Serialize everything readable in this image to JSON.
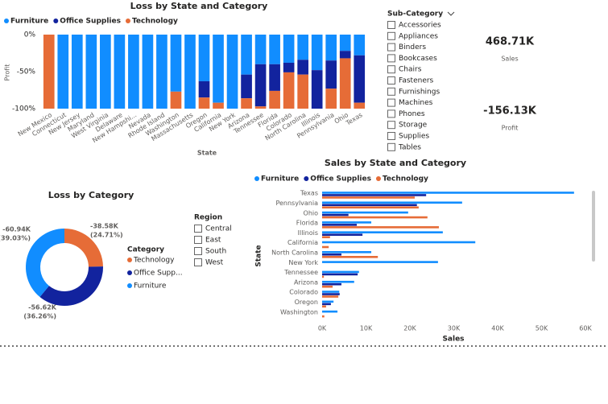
{
  "chart_data": [
    {
      "type": "stacked_column_100",
      "title": "Loss by State and Category",
      "x_label": "State",
      "y_label": "Profit",
      "categories": [
        "New Mexico",
        "Connecticut",
        "New Jersey",
        "Maryland",
        "West Virginia",
        "Delaware",
        "New Hampshi...",
        "Nevada",
        "Rhode Island",
        "Washington",
        "Massachusetts",
        "Oregon",
        "California",
        "New York",
        "Arizona",
        "Tennessee",
        "Florida",
        "Colorado",
        "North Carolina",
        "Illinois",
        "Pennsylvania",
        "Ohio",
        "Texas"
      ],
      "series": [
        {
          "name": "Furniture",
          "color": "#118DFF",
          "values": [
            0,
            -100,
            -100,
            -100,
            -100,
            -100,
            -100,
            -100,
            -100,
            -77,
            -100,
            -63,
            -92,
            -100,
            -54,
            -40,
            -40,
            -38,
            -34,
            -48,
            -35,
            -22,
            -28
          ]
        },
        {
          "name": "Office Supplies",
          "color": "#12239E",
          "values": [
            0,
            0,
            0,
            0,
            0,
            0,
            0,
            0,
            0,
            0,
            0,
            -22,
            0,
            0,
            -32,
            -57,
            -36,
            -13,
            -20,
            -52,
            -38,
            -10,
            -64
          ]
        },
        {
          "name": "Technology",
          "color": "#E66C37",
          "values": [
            -100,
            0,
            0,
            0,
            0,
            0,
            0,
            0,
            0,
            -23,
            0,
            -15,
            -8,
            0,
            -14,
            -3,
            -24,
            -49,
            -46,
            0,
            -27,
            -68,
            -8
          ]
        }
      ],
      "ylim": [
        -100,
        0
      ],
      "yticks": [
        {
          "value": 0,
          "label": "0%"
        },
        {
          "value": -50,
          "label": "-50%"
        },
        {
          "value": -100,
          "label": "-100%"
        }
      ],
      "grid": false
    },
    {
      "type": "donut",
      "title": "Loss by Category",
      "legend_title": "Category",
      "categories": [
        "Technology",
        "Office Supp...",
        "Furniture"
      ],
      "colors": [
        "#E66C37",
        "#12239E",
        "#118DFF"
      ],
      "values": [
        -38580,
        -56620,
        -60940
      ],
      "value_labels": [
        "-38.58K",
        "-56.62K",
        "-60.94K"
      ],
      "percents": [
        24.71,
        36.26,
        39.03
      ],
      "percent_labels": [
        "(24.71%)",
        "(36.26%)",
        "(39.03%)"
      ]
    },
    {
      "type": "horizontal_grouped_bar",
      "title": "Sales by State and Category",
      "x_label": "Sales",
      "y_label": "State",
      "categories": [
        "Texas",
        "Pennsylvania",
        "Ohio",
        "Florida",
        "Illinois",
        "California",
        "North Carolina",
        "New York",
        "Tennessee",
        "Arizona",
        "Colorado",
        "Oregon",
        "Washington"
      ],
      "series": [
        {
          "name": "Furniture",
          "color": "#118DFF",
          "values": [
            57400,
            31900,
            19600,
            11200,
            27500,
            34900,
            11200,
            26400,
            8400,
            7300,
            3900,
            2600,
            3500
          ]
        },
        {
          "name": "Office Supplies",
          "color": "#12239E",
          "values": [
            23700,
            21600,
            6000,
            7900,
            9200,
            0,
            4400,
            0,
            8100,
            4400,
            4000,
            2000,
            0
          ]
        },
        {
          "name": "Technology",
          "color": "#E66C37",
          "values": [
            21100,
            22000,
            24000,
            26600,
            1800,
            1500,
            12700,
            0,
            400,
            2400,
            3700,
            900,
            500
          ]
        }
      ],
      "xlim": [
        0,
        60000
      ],
      "xticks": [
        {
          "value": 0,
          "label": "0K"
        },
        {
          "value": 10000,
          "label": "10K"
        },
        {
          "value": 20000,
          "label": "20K"
        },
        {
          "value": 30000,
          "label": "30K"
        },
        {
          "value": 40000,
          "label": "40K"
        },
        {
          "value": 50000,
          "label": "50K"
        },
        {
          "value": 60000,
          "label": "60K"
        }
      ],
      "grid": false
    }
  ],
  "slicers": [
    {
      "title": "Sub-Category",
      "items": [
        "Accessories",
        "Appliances",
        "Binders",
        "Bookcases",
        "Chairs",
        "Fasteners",
        "Furnishings",
        "Machines",
        "Phones",
        "Storage",
        "Supplies",
        "Tables"
      ]
    },
    {
      "title": "Region",
      "items": [
        "Central",
        "East",
        "South",
        "West"
      ]
    }
  ],
  "cards": [
    {
      "value": "468.71K",
      "label": "Sales"
    },
    {
      "value": "-156.13K",
      "label": "Profit"
    }
  ]
}
